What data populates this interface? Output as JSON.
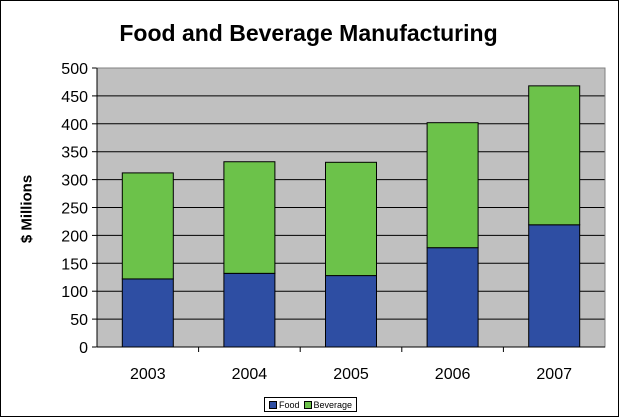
{
  "chart_data": {
    "type": "bar",
    "stacked": true,
    "title": "Food and Beverage Manufacturing",
    "xlabel": "",
    "ylabel": "$ Millions",
    "categories": [
      "2003",
      "2004",
      "2005",
      "2006",
      "2007"
    ],
    "series": [
      {
        "name": "Food",
        "color": "#2e4ea3",
        "values": [
          122,
          132,
          128,
          178,
          219
        ]
      },
      {
        "name": "Beverage",
        "color": "#6cc24a",
        "values": [
          190,
          200,
          203,
          224,
          249
        ]
      }
    ],
    "ylim": [
      0,
      500
    ],
    "yticks": [
      "0",
      "50",
      "100",
      "150",
      "200",
      "250",
      "300",
      "350",
      "400",
      "450",
      "500"
    ],
    "grid": true,
    "plot_background": "#c0c0c0",
    "legend_position": "bottom"
  }
}
